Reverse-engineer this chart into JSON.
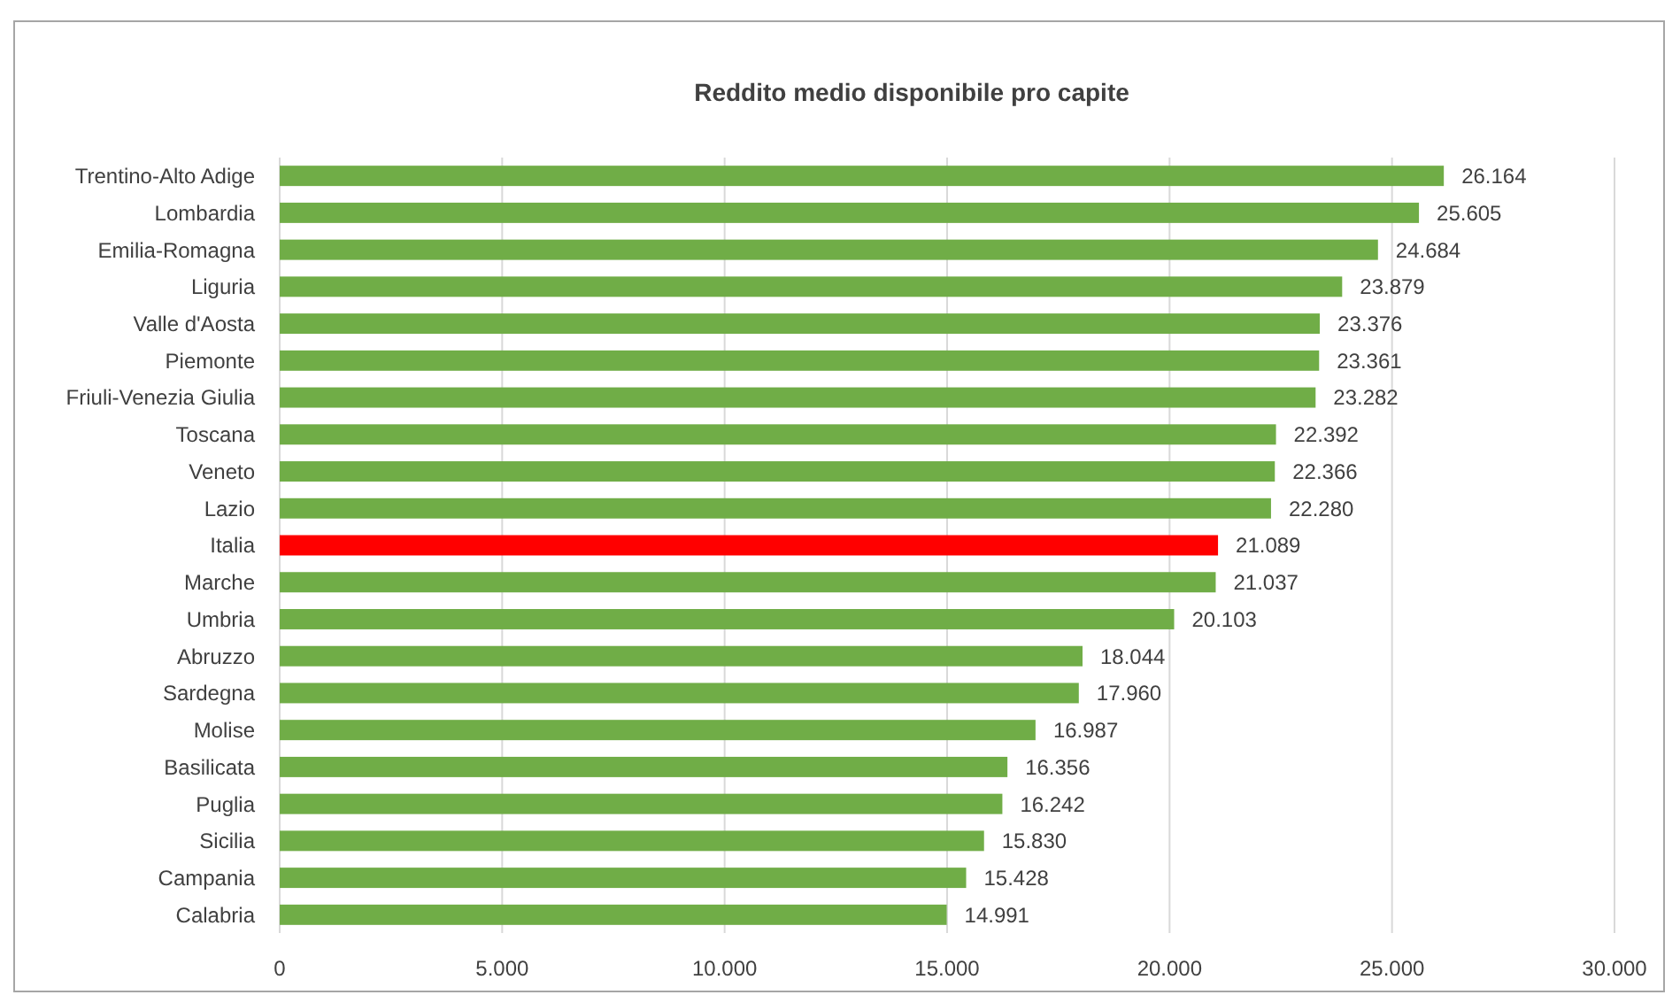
{
  "chart_data": {
    "type": "bar",
    "orientation": "horizontal",
    "title": "Reddito medio disponibile pro capite",
    "categories": [
      "Trentino-Alto Adige",
      "Lombardia",
      "Emilia-Romagna",
      "Liguria",
      "Valle d'Aosta",
      "Piemonte",
      "Friuli-Venezia Giulia",
      "Toscana",
      "Veneto",
      "Lazio",
      "Italia",
      "Marche",
      "Umbria",
      "Abruzzo",
      "Sardegna",
      "Molise",
      "Basilicata",
      "Puglia",
      "Sicilia",
      "Campania",
      "Calabria"
    ],
    "values": [
      26164,
      25605,
      24684,
      23879,
      23376,
      23361,
      23282,
      22392,
      22366,
      22280,
      21089,
      21037,
      20103,
      18044,
      17960,
      16987,
      16356,
      16242,
      15830,
      15428,
      14991
    ],
    "value_labels": [
      "26.164",
      "25.605",
      "24.684",
      "23.879",
      "23.376",
      "23.361",
      "23.282",
      "22.392",
      "22.366",
      "22.280",
      "21.089",
      "21.037",
      "20.103",
      "18.044",
      "17.960",
      "16.987",
      "16.356",
      "16.242",
      "15.830",
      "15.428",
      "14.991"
    ],
    "colors": [
      "#70ad47",
      "#70ad47",
      "#70ad47",
      "#70ad47",
      "#70ad47",
      "#70ad47",
      "#70ad47",
      "#70ad47",
      "#70ad47",
      "#70ad47",
      "#ff0000",
      "#70ad47",
      "#70ad47",
      "#70ad47",
      "#70ad47",
      "#70ad47",
      "#70ad47",
      "#70ad47",
      "#70ad47",
      "#70ad47",
      "#70ad47"
    ],
    "xlim": [
      0,
      30000
    ],
    "xticks": [
      0,
      {
        "value": 5000,
        "label": "5.000"
      },
      {
        "value": 10000,
        "label": "10.000"
      },
      {
        "value": 15000,
        "label": "15.000"
      },
      {
        "value": 20000,
        "label": "20.000"
      },
      {
        "value": 25000,
        "label": "25.000"
      },
      {
        "value": 30000,
        "label": "30.000"
      }
    ],
    "grid": "x"
  }
}
